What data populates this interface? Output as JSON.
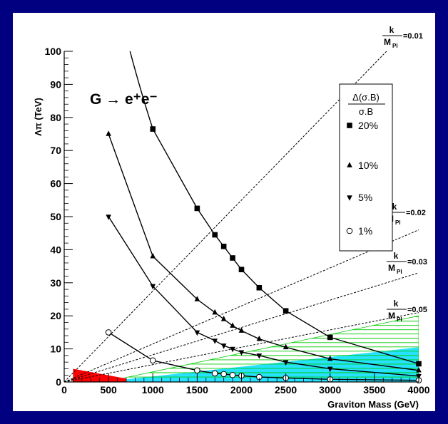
{
  "chart_data": {
    "type": "line",
    "title": "G → e⁺e⁻",
    "xlabel": "Graviton Mass (GeV)",
    "ylabel": "Λπ (TeV)",
    "xlim": [
      0,
      4000
    ],
    "ylim": [
      0,
      100
    ],
    "x_ticks": [
      "0",
      "500",
      "1000",
      "1500",
      "2000",
      "2500",
      "3000",
      "3500",
      "4000"
    ],
    "y_ticks": [
      "0",
      "10",
      "20",
      "30",
      "40",
      "50",
      "60",
      "70",
      "80",
      "90",
      "100"
    ],
    "legend": {
      "title_numerator": "Δ(σ.B)",
      "title_denominator": "σ.B",
      "placement": "right",
      "entries": [
        "20%",
        "10%",
        "5%",
        "1%"
      ]
    },
    "series": [
      {
        "name": "20%",
        "marker": "square",
        "x": [
          1000,
          1500,
          1700,
          1800,
          1900,
          2000,
          2200,
          2500,
          3000,
          4000
        ],
        "y": [
          76.5,
          52.5,
          44.5,
          41,
          37.5,
          34,
          28.5,
          21.5,
          13.5,
          5.5
        ]
      },
      {
        "name": "10%",
        "marker": "triangle-up",
        "x": [
          500,
          1000,
          1500,
          1700,
          1800,
          1900,
          2000,
          2200,
          2500,
          3000,
          4000
        ],
        "y": [
          75,
          38,
          25,
          21,
          19,
          17,
          15.5,
          13,
          10.5,
          7,
          3.5
        ]
      },
      {
        "name": "5%",
        "marker": "triangle-down",
        "x": [
          500,
          1000,
          1500,
          1700,
          1800,
          1900,
          2000,
          2200,
          2500,
          3000,
          4000
        ],
        "y": [
          50,
          29,
          15,
          12.5,
          11,
          10,
          9,
          8,
          6,
          4,
          1.8
        ]
      },
      {
        "name": "1%",
        "marker": "circle-open",
        "x": [
          500,
          1000,
          1500,
          1700,
          1800,
          1900,
          2000,
          2200,
          2500,
          3000,
          4000
        ],
        "y": [
          15,
          6.5,
          3.5,
          2.6,
          2.4,
          2.1,
          1.9,
          1.5,
          1.2,
          0.8,
          0.5
        ]
      }
    ],
    "coupling_lines": [
      {
        "label_k": "k",
        "label_mpl": "M",
        "label_mpl_sub": "Pl",
        "value": "=0.01",
        "x_end": 4000,
        "y_end": 110
      },
      {
        "label_k": "k",
        "label_mpl": "M",
        "label_mpl_sub": "Pl",
        "value": "=0.02",
        "x_end": 4000,
        "y_end": 46
      },
      {
        "label_k": "k",
        "label_mpl": "M",
        "label_mpl_sub": "Pl",
        "value": "=0.03",
        "x_end": 4000,
        "y_end": 33
      },
      {
        "label_k": "k",
        "label_mpl": "M",
        "label_mpl_sub": "Pl",
        "value": "=0.05",
        "x_end": 4000,
        "y_end": 21
      }
    ],
    "regions": [
      {
        "color": "#00ddff",
        "x": [
          600,
          4000
        ],
        "y_top": [
          0.5,
          10.5
        ]
      },
      {
        "color": "#00cc00",
        "hatched": true,
        "x": [
          600,
          4000
        ],
        "y_top": [
          0.8,
          20
        ]
      },
      {
        "color": "#ff0000",
        "x": [
          100,
          700
        ],
        "y_top": [
          4,
          1
        ]
      }
    ]
  }
}
